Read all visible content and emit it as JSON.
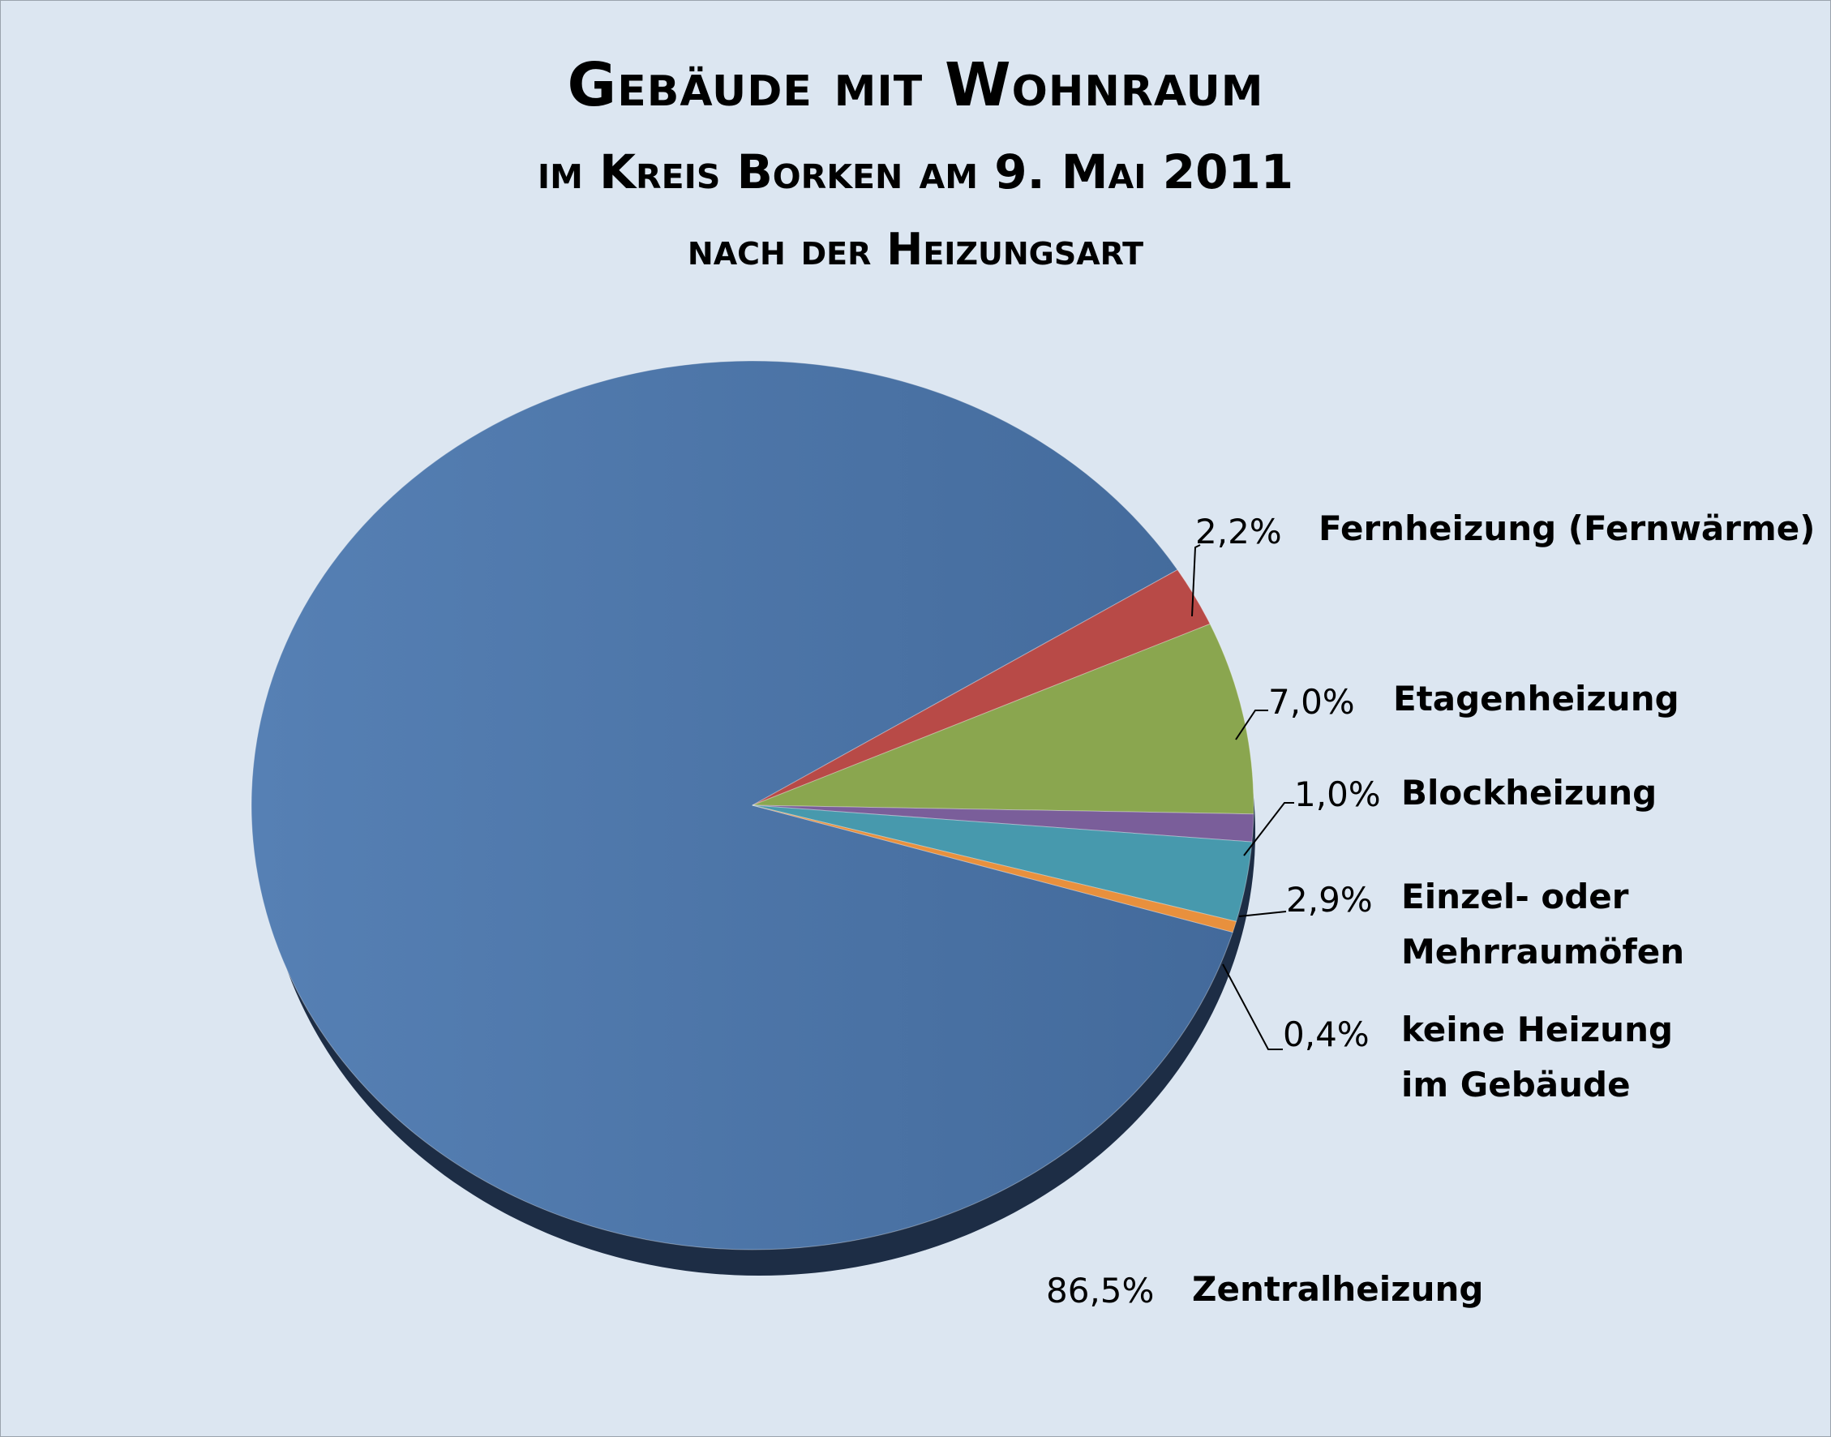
{
  "chart_data": {
    "type": "pie",
    "title": [
      "Gebäude mit Wohnraum",
      "im Kreis Borken am 9. Mai 2011",
      "nach der Heizungsart"
    ],
    "slices": [
      {
        "name": "Zentralheizung",
        "value": 86.5,
        "label": "86,5%",
        "color": "#4f77aa"
      },
      {
        "name": "Fernheizung (Fernwärme)",
        "value": 2.2,
        "label": "2,2%",
        "color": "#b84a47"
      },
      {
        "name": "Etagenheizung",
        "value": 7.0,
        "label": "7,0%",
        "color": "#8aa64f"
      },
      {
        "name": "Blockheizung",
        "value": 1.0,
        "label": "1,0%",
        "color": "#7a5e9a"
      },
      {
        "name": "Einzel- oder Mehrraumöfen",
        "value": 2.9,
        "label": "2,9%",
        "color": "#4799ad"
      },
      {
        "name": "keine Heizung im Gebäude",
        "value": 0.4,
        "label": "0,4%",
        "color": "#e8903d"
      }
    ],
    "label_lines": {
      "Einzel- oder Mehrraumöfen": [
        "Einzel- oder",
        "Mehrraumöfen"
      ],
      "keine Heizung im Gebäude": [
        "keine Heizung",
        "im Gebäude"
      ]
    },
    "colors": {
      "background": "#dce6f1",
      "shadow": "#1d2d45"
    }
  }
}
